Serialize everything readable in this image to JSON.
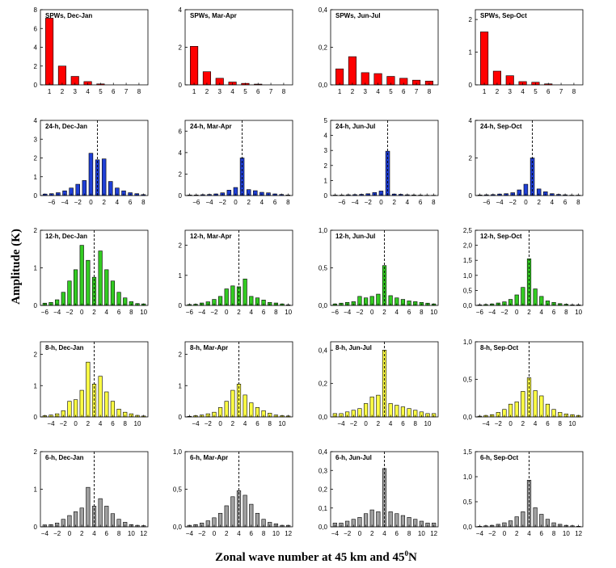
{
  "figure": {
    "ylabel": "Amplitude (K)",
    "xlabel_main": "Zonal wave number at 45 km and 45",
    "xlabel_sup": "0",
    "xlabel_tail": "N"
  },
  "colors": {
    "SPWs": "#ff0000",
    "24-h": "#1f3fd6",
    "12-h": "#33cc22",
    "8-h": "#ffff44",
    "6-h": "#a0a0a0"
  },
  "rows": [
    {
      "name": "SPWs",
      "xmin": 1,
      "xmax": 8,
      "xlim": [
        0.3,
        8.7
      ],
      "xticks": [
        1,
        2,
        3,
        4,
        5,
        6,
        7,
        8
      ],
      "dashed_x": null
    },
    {
      "name": "24-h",
      "xmin": -7,
      "xmax": 8,
      "xlim": [
        -7.7,
        8.7
      ],
      "xticks": [
        -6,
        -4,
        -2,
        0,
        2,
        4,
        6,
        8
      ],
      "dashed_x": 1
    },
    {
      "name": "12-h",
      "xmin": -6,
      "xmax": 10,
      "xlim": [
        -6.7,
        10.7
      ],
      "xticks": [
        -6,
        -4,
        -2,
        0,
        2,
        4,
        6,
        8,
        10
      ],
      "dashed_x": 2
    },
    {
      "name": "8-h",
      "xmin": -5,
      "xmax": 11,
      "xlim": [
        -5.7,
        11.7
      ],
      "xticks": [
        -4,
        -2,
        0,
        2,
        4,
        6,
        8,
        10
      ],
      "dashed_x": 3
    },
    {
      "name": "6-h",
      "xmin": -4,
      "xmax": 12,
      "xlim": [
        -4.7,
        12.7
      ],
      "xticks": [
        -4,
        -2,
        0,
        2,
        4,
        6,
        8,
        10,
        12
      ],
      "dashed_x": 4
    }
  ],
  "chart_data": [
    {
      "type": "bar",
      "title": "SPWs, Dec-Jan",
      "ylim": [
        0,
        8
      ],
      "yticks": [
        0,
        2,
        4,
        6,
        8
      ],
      "ytick_labels": [
        "0",
        "2",
        "4",
        "6",
        "8"
      ],
      "x": [
        1,
        2,
        3,
        4,
        5,
        6,
        7,
        8
      ],
      "values": [
        7.1,
        2.0,
        0.9,
        0.35,
        0.1,
        0.0,
        0.0,
        0.0
      ]
    },
    {
      "type": "bar",
      "title": "SPWs, Mar-Apr",
      "ylim": [
        0,
        4
      ],
      "yticks": [
        0,
        2,
        4
      ],
      "ytick_labels": [
        "0",
        "2",
        "4"
      ],
      "x": [
        1,
        2,
        3,
        4,
        5,
        6,
        7,
        8
      ],
      "values": [
        2.05,
        0.7,
        0.35,
        0.15,
        0.08,
        0.04,
        0.0,
        0.0
      ]
    },
    {
      "type": "bar",
      "title": "SPWs, Jun-Jul",
      "ylim": [
        0,
        0.4
      ],
      "yticks": [
        0,
        0.2,
        0.4
      ],
      "ytick_labels": [
        "0,0",
        "0,2",
        "0,4"
      ],
      "x": [
        1,
        2,
        3,
        4,
        5,
        6,
        7,
        8
      ],
      "values": [
        0.085,
        0.15,
        0.065,
        0.06,
        0.045,
        0.035,
        0.025,
        0.02
      ]
    },
    {
      "type": "bar",
      "title": "SPWs, Sep-Oct",
      "ylim": [
        0,
        2.3
      ],
      "yticks": [
        0,
        1,
        2
      ],
      "ytick_labels": [
        "0",
        "1",
        "2"
      ],
      "x": [
        1,
        2,
        3,
        4,
        5,
        6,
        7,
        8
      ],
      "values": [
        1.62,
        0.42,
        0.28,
        0.1,
        0.08,
        0.03,
        0.0,
        0.0
      ]
    },
    {
      "type": "bar",
      "title": "24-h, Dec-Jan",
      "ylim": [
        0,
        4
      ],
      "yticks": [
        0,
        1,
        2,
        3,
        4
      ],
      "ytick_labels": [
        "0",
        "1",
        "2",
        "3",
        "4"
      ],
      "x": [
        -7,
        -6,
        -5,
        -4,
        -3,
        -2,
        -1,
        0,
        1,
        2,
        3,
        4,
        5,
        6,
        7,
        8
      ],
      "values": [
        0.08,
        0.1,
        0.15,
        0.25,
        0.4,
        0.6,
        0.8,
        2.25,
        1.9,
        1.95,
        0.75,
        0.4,
        0.25,
        0.15,
        0.1,
        0.05
      ]
    },
    {
      "type": "bar",
      "title": "24-h, Mar-Apr",
      "ylim": [
        0,
        7
      ],
      "yticks": [
        0,
        2,
        4,
        6
      ],
      "ytick_labels": [
        "0",
        "2",
        "4",
        "6"
      ],
      "x": [
        -7,
        -6,
        -5,
        -4,
        -3,
        -2,
        -1,
        0,
        1,
        2,
        3,
        4,
        5,
        6,
        7,
        8
      ],
      "values": [
        0.05,
        0.05,
        0.08,
        0.1,
        0.15,
        0.25,
        0.5,
        0.75,
        3.5,
        0.55,
        0.45,
        0.3,
        0.25,
        0.15,
        0.1,
        0.05
      ]
    },
    {
      "type": "bar",
      "title": "24-h, Jun-Jul",
      "ylim": [
        0,
        5
      ],
      "yticks": [
        0,
        1,
        2,
        3,
        4,
        5
      ],
      "ytick_labels": [
        "0",
        "1",
        "2",
        "3",
        "4",
        "5"
      ],
      "x": [
        -7,
        -6,
        -5,
        -4,
        -3,
        -2,
        -1,
        0,
        1,
        2,
        3,
        4,
        5,
        6,
        7,
        8
      ],
      "values": [
        0.03,
        0.03,
        0.05,
        0.06,
        0.08,
        0.12,
        0.2,
        0.3,
        2.95,
        0.1,
        0.08,
        0.05,
        0.04,
        0.03,
        0.02,
        0.02
      ]
    },
    {
      "type": "bar",
      "title": "24-h, Sep-Oct",
      "ylim": [
        0,
        4
      ],
      "yticks": [
        0,
        2,
        4
      ],
      "ytick_labels": [
        "0",
        "2",
        "4"
      ],
      "x": [
        -7,
        -6,
        -5,
        -4,
        -3,
        -2,
        -1,
        0,
        1,
        2,
        3,
        4,
        5,
        6,
        7,
        8
      ],
      "values": [
        0.03,
        0.04,
        0.05,
        0.08,
        0.1,
        0.15,
        0.3,
        0.6,
        2.0,
        0.35,
        0.2,
        0.1,
        0.06,
        0.04,
        0.02,
        0.02
      ]
    },
    {
      "type": "bar",
      "title": "12-h, Dec-Jan",
      "ylim": [
        0,
        2
      ],
      "yticks": [
        0,
        1,
        2
      ],
      "ytick_labels": [
        "0",
        "1",
        "2"
      ],
      "x": [
        -6,
        -5,
        -4,
        -3,
        -2,
        -1,
        0,
        1,
        2,
        3,
        4,
        5,
        6,
        7,
        8,
        9,
        10
      ],
      "values": [
        0.06,
        0.08,
        0.15,
        0.35,
        0.65,
        0.95,
        1.6,
        1.2,
        0.75,
        1.45,
        0.95,
        0.65,
        0.35,
        0.2,
        0.1,
        0.05,
        0.04
      ]
    },
    {
      "type": "bar",
      "title": "12-h, Mar-Apr",
      "ylim": [
        0,
        2.5
      ],
      "yticks": [
        0,
        1,
        2
      ],
      "ytick_labels": [
        "0",
        "1",
        "2"
      ],
      "x": [
        -6,
        -5,
        -4,
        -3,
        -2,
        -1,
        0,
        1,
        2,
        3,
        4,
        5,
        6,
        7,
        8,
        9,
        10
      ],
      "values": [
        0.03,
        0.04,
        0.08,
        0.12,
        0.2,
        0.3,
        0.55,
        0.65,
        0.62,
        0.88,
        0.3,
        0.25,
        0.18,
        0.1,
        0.08,
        0.05,
        0.02
      ]
    },
    {
      "type": "bar",
      "title": "12-h, Jun-Jul",
      "ylim": [
        0,
        1.0
      ],
      "yticks": [
        0,
        0.5,
        1.0
      ],
      "ytick_labels": [
        "0,0",
        "0,5",
        "1,0"
      ],
      "x": [
        -6,
        -5,
        -4,
        -3,
        -2,
        -1,
        0,
        1,
        2,
        3,
        4,
        5,
        6,
        7,
        8,
        9,
        10
      ],
      "values": [
        0.02,
        0.03,
        0.04,
        0.05,
        0.12,
        0.1,
        0.12,
        0.15,
        0.53,
        0.13,
        0.1,
        0.08,
        0.06,
        0.05,
        0.04,
        0.03,
        0.02
      ]
    },
    {
      "type": "bar",
      "title": "12-h, Sep-Oct",
      "ylim": [
        0,
        2.5
      ],
      "yticks": [
        0,
        0.5,
        1.0,
        1.5,
        2.0,
        2.5
      ],
      "ytick_labels": [
        "0,0",
        "0,5",
        "1,0",
        "1,5",
        "2,0",
        "2,5"
      ],
      "x": [
        -6,
        -5,
        -4,
        -3,
        -2,
        -1,
        0,
        1,
        2,
        3,
        4,
        5,
        6,
        7,
        8,
        9,
        10
      ],
      "values": [
        0.02,
        0.03,
        0.05,
        0.08,
        0.12,
        0.2,
        0.35,
        0.6,
        1.55,
        0.55,
        0.3,
        0.15,
        0.1,
        0.06,
        0.04,
        0.02,
        0.02
      ]
    },
    {
      "type": "bar",
      "title": "8-h, Dec-Jan",
      "ylim": [
        0,
        2.4
      ],
      "yticks": [
        0,
        1,
        2
      ],
      "ytick_labels": [
        "0",
        "1",
        "2"
      ],
      "x": [
        -5,
        -4,
        -3,
        -2,
        -1,
        0,
        1,
        2,
        3,
        4,
        5,
        6,
        7,
        8,
        9,
        10,
        11
      ],
      "values": [
        0.04,
        0.06,
        0.1,
        0.2,
        0.5,
        0.55,
        0.85,
        1.75,
        1.05,
        1.3,
        0.8,
        0.5,
        0.25,
        0.15,
        0.1,
        0.05,
        0.03
      ]
    },
    {
      "type": "bar",
      "title": "8-h, Mar-Apr",
      "ylim": [
        0,
        2.4
      ],
      "yticks": [
        0,
        1,
        2
      ],
      "ytick_labels": [
        "0",
        "1",
        "2"
      ],
      "x": [
        -5,
        -4,
        -3,
        -2,
        -1,
        0,
        1,
        2,
        3,
        4,
        5,
        6,
        7,
        8,
        9,
        10,
        11
      ],
      "values": [
        0.02,
        0.04,
        0.06,
        0.1,
        0.15,
        0.3,
        0.5,
        0.85,
        1.05,
        0.7,
        0.45,
        0.3,
        0.2,
        0.12,
        0.06,
        0.04,
        0.03
      ]
    },
    {
      "type": "bar",
      "title": "8-h, Jun-Jul",
      "ylim": [
        0,
        0.45
      ],
      "yticks": [
        0,
        0.2,
        0.4
      ],
      "ytick_labels": [
        "0,0",
        "0,2",
        "0,4"
      ],
      "x": [
        -5,
        -4,
        -3,
        -2,
        -1,
        0,
        1,
        2,
        3,
        4,
        5,
        6,
        7,
        8,
        9,
        10,
        11
      ],
      "values": [
        0.02,
        0.02,
        0.03,
        0.04,
        0.05,
        0.08,
        0.12,
        0.13,
        0.4,
        0.08,
        0.07,
        0.06,
        0.05,
        0.04,
        0.03,
        0.02,
        0.02
      ]
    },
    {
      "type": "bar",
      "title": "8-h, Sep-Oct",
      "ylim": [
        0,
        1.0
      ],
      "yticks": [
        0,
        0.5,
        1.0
      ],
      "ytick_labels": [
        "0,0",
        "0,5",
        "1,0"
      ],
      "x": [
        -5,
        -4,
        -3,
        -2,
        -1,
        0,
        1,
        2,
        3,
        4,
        5,
        6,
        7,
        8,
        9,
        10,
        11
      ],
      "values": [
        0.01,
        0.02,
        0.03,
        0.06,
        0.1,
        0.17,
        0.2,
        0.34,
        0.52,
        0.35,
        0.28,
        0.17,
        0.1,
        0.06,
        0.04,
        0.03,
        0.02
      ]
    },
    {
      "type": "bar",
      "title": "6-h, Dec-Jan",
      "ylim": [
        0,
        2
      ],
      "yticks": [
        0,
        1,
        2
      ],
      "ytick_labels": [
        "0",
        "1",
        "2"
      ],
      "x": [
        -4,
        -3,
        -2,
        -1,
        0,
        1,
        2,
        3,
        4,
        5,
        6,
        7,
        8,
        9,
        10,
        11,
        12
      ],
      "values": [
        0.05,
        0.06,
        0.1,
        0.2,
        0.3,
        0.4,
        0.5,
        1.05,
        0.55,
        0.75,
        0.55,
        0.35,
        0.2,
        0.12,
        0.06,
        0.04,
        0.03
      ]
    },
    {
      "type": "bar",
      "title": "6-h, Mar-Apr",
      "ylim": [
        0,
        1.0
      ],
      "yticks": [
        0,
        0.5,
        1.0
      ],
      "ytick_labels": [
        "0,0",
        "0,5",
        "1,0"
      ],
      "x": [
        -4,
        -3,
        -2,
        -1,
        0,
        1,
        2,
        3,
        4,
        5,
        6,
        7,
        8,
        9,
        10,
        11,
        12
      ],
      "values": [
        0.02,
        0.03,
        0.05,
        0.08,
        0.12,
        0.18,
        0.28,
        0.4,
        0.48,
        0.42,
        0.3,
        0.18,
        0.1,
        0.06,
        0.04,
        0.02,
        0.02
      ]
    },
    {
      "type": "bar",
      "title": "6-h, Jun-Jul",
      "ylim": [
        0,
        0.4
      ],
      "yticks": [
        0,
        0.1,
        0.2,
        0.3,
        0.4
      ],
      "ytick_labels": [
        "0,0",
        "0,1",
        "0,2",
        "0,3",
        "0,4"
      ],
      "x": [
        -4,
        -3,
        -2,
        -1,
        0,
        1,
        2,
        3,
        4,
        5,
        6,
        7,
        8,
        9,
        10,
        11,
        12
      ],
      "values": [
        0.02,
        0.02,
        0.03,
        0.04,
        0.05,
        0.07,
        0.09,
        0.08,
        0.31,
        0.08,
        0.07,
        0.06,
        0.05,
        0.04,
        0.03,
        0.02,
        0.02
      ]
    },
    {
      "type": "bar",
      "title": "6-h, Sep-Oct",
      "ylim": [
        0,
        1.5
      ],
      "yticks": [
        0,
        0.5,
        1.0,
        1.5
      ],
      "ytick_labels": [
        "0,0",
        "0,5",
        "1,0",
        "1,5"
      ],
      "x": [
        -4,
        -3,
        -2,
        -1,
        0,
        1,
        2,
        3,
        4,
        5,
        6,
        7,
        8,
        9,
        10,
        11,
        12
      ],
      "values": [
        0.01,
        0.02,
        0.03,
        0.05,
        0.08,
        0.12,
        0.2,
        0.3,
        0.93,
        0.38,
        0.25,
        0.15,
        0.08,
        0.05,
        0.03,
        0.02,
        0.01
      ]
    }
  ]
}
